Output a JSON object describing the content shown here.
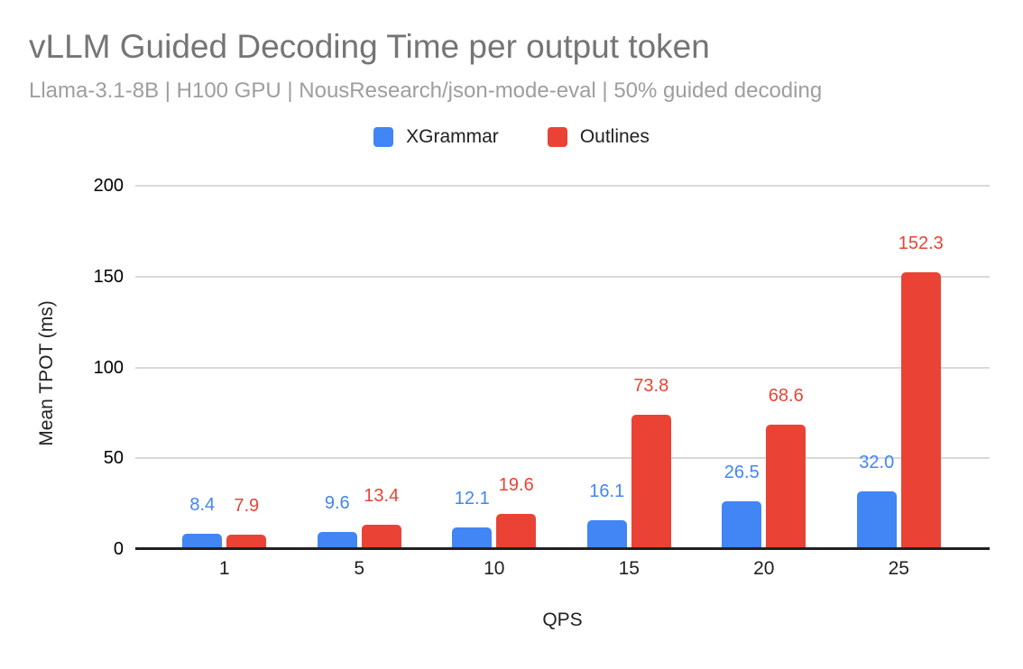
{
  "header": {
    "title": "vLLM Guided Decoding Time per output token",
    "subtitle": "Llama-3.1-8B | H100 GPU | NousResearch/json-mode-eval | 50% guided decoding"
  },
  "legend": {
    "position": "top-center",
    "items": [
      {
        "label": "XGrammar",
        "color": "#4285F4"
      },
      {
        "label": "Outlines",
        "color": "#EA4335"
      }
    ]
  },
  "chart_data": {
    "type": "bar",
    "title": "vLLM Guided Decoding Time per output token",
    "subtitle": "Llama-3.1-8B | H100 GPU | NousResearch/json-mode-eval | 50% guided decoding",
    "categories": [
      "1",
      "5",
      "10",
      "15",
      "20",
      "25"
    ],
    "series": [
      {
        "name": "XGrammar",
        "color": "#4285F4",
        "values": [
          8.4,
          9.6,
          12.1,
          16.1,
          26.5,
          32.0
        ]
      },
      {
        "name": "Outlines",
        "color": "#EA4335",
        "values": [
          7.9,
          13.4,
          19.6,
          73.8,
          68.6,
          152.3
        ]
      }
    ],
    "xlabel": "QPS",
    "ylabel": "Mean TPOT (ms)",
    "ylim": [
      0,
      200
    ],
    "yticks": [
      0,
      50,
      100,
      150,
      200
    ],
    "grid": true,
    "data_labels": true,
    "data_label_decimals": 1,
    "legend_position": "top"
  },
  "colors": {
    "background": "#ffffff",
    "title_text": "#757575",
    "subtitle_text": "#9e9e9e",
    "axis_text": "#212121",
    "gridline": "#d9d9d9",
    "axis_line": "#212121",
    "series_blue": "#4285F4",
    "series_red": "#EA4335"
  }
}
